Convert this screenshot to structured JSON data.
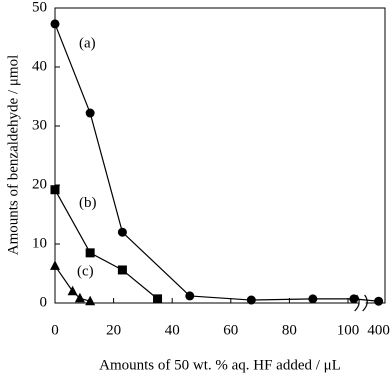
{
  "chart_data": {
    "type": "line",
    "x_label": "Amounts of 50 wt. % aq. HF added / μL",
    "y_label": "Amounts of benzaldehyde / μmol",
    "xlim": [
      0,
      402
    ],
    "xbreak": [
      105,
      395
    ],
    "xticks": [
      0,
      20,
      40,
      60,
      80,
      100,
      400
    ],
    "ylim": [
      0,
      50
    ],
    "yticks": [
      0,
      10,
      20,
      30,
      40,
      50
    ],
    "grid": false,
    "series": [
      {
        "name": "(a)",
        "color": "#000000",
        "marker": "circle",
        "x": [
          0,
          12,
          23,
          46,
          67,
          88,
          102,
          400
        ],
        "values": [
          47.3,
          32.2,
          12,
          1.2,
          0.5,
          0.7,
          0.7,
          0.3
        ]
      },
      {
        "name": "(b)",
        "color": "#000000",
        "marker": "square",
        "x": [
          0,
          12,
          23,
          35
        ],
        "values": [
          19.2,
          8.5,
          5.6,
          0.7
        ]
      },
      {
        "name": "(c)",
        "color": "#000000",
        "marker": "triangle",
        "x": [
          0,
          6,
          8.5,
          12
        ],
        "values": [
          6.3,
          2.0,
          0.8,
          0.3
        ]
      }
    ]
  }
}
